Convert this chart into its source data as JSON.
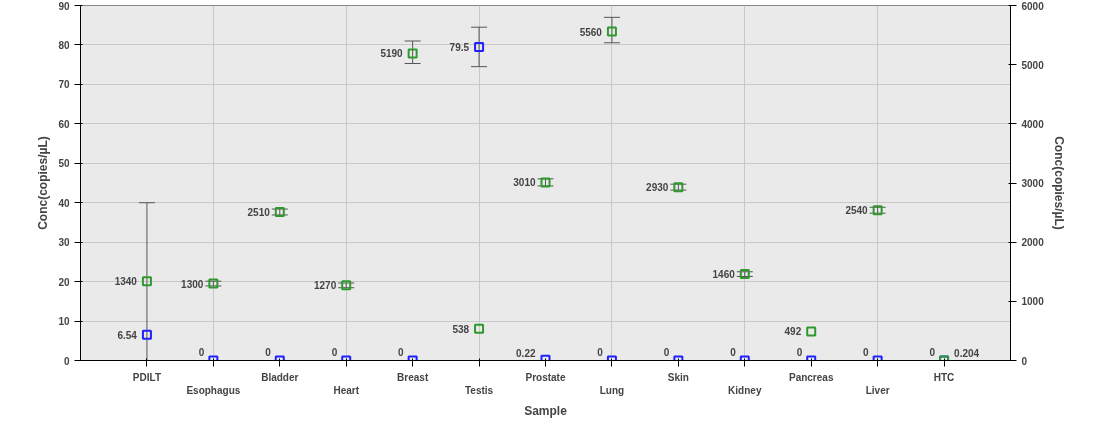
{
  "chart_data": {
    "type": "scatter",
    "xlabel": "Sample",
    "ylabel": "Conc(copies/µL)",
    "y2label": "Conc(copies/µL)",
    "categories": [
      "PDILT",
      "Esophagus",
      "Bladder",
      "Heart",
      "Breast",
      "Testis",
      "Prostate",
      "Lung",
      "Skin",
      "Kidney",
      "Pancreas",
      "Liver",
      "HTC"
    ],
    "series": [
      {
        "color": "#2020ff",
        "values": [
          6.54,
          0,
          0,
          0,
          0,
          79.5,
          0.22,
          0,
          0,
          0,
          0,
          0,
          0
        ],
        "errors": [
          [
            0,
            40
          ],
          null,
          null,
          null,
          null,
          [
            74.5,
            84.5
          ],
          null,
          null,
          null,
          null,
          null,
          null,
          null
        ]
      },
      {
        "color": "#2e9a2e",
        "axis": "y2",
        "values": [
          1340,
          1300,
          2510,
          1270,
          5190,
          538,
          3010,
          5560,
          2930,
          1460,
          492,
          2540,
          0.204
        ],
        "errors": [
          null,
          [
            1260,
            1340
          ],
          [
            2460,
            2560
          ],
          [
            1230,
            1310
          ],
          [
            5020,
            5400
          ],
          null,
          [
            2950,
            3070
          ],
          [
            5370,
            5800
          ],
          [
            2880,
            2980
          ],
          [
            1420,
            1500
          ],
          null,
          [
            2490,
            2590
          ],
          null
        ]
      }
    ],
    "ylim": [
      0,
      90
    ],
    "yticks": [
      0,
      10,
      20,
      30,
      40,
      50,
      60,
      70,
      80,
      90
    ],
    "y2lim": [
      0,
      6000
    ],
    "y2ticks": [
      0,
      1000,
      2000,
      3000,
      4000,
      5000,
      6000
    ],
    "grid": true,
    "marker": "square",
    "data_labels": true
  }
}
